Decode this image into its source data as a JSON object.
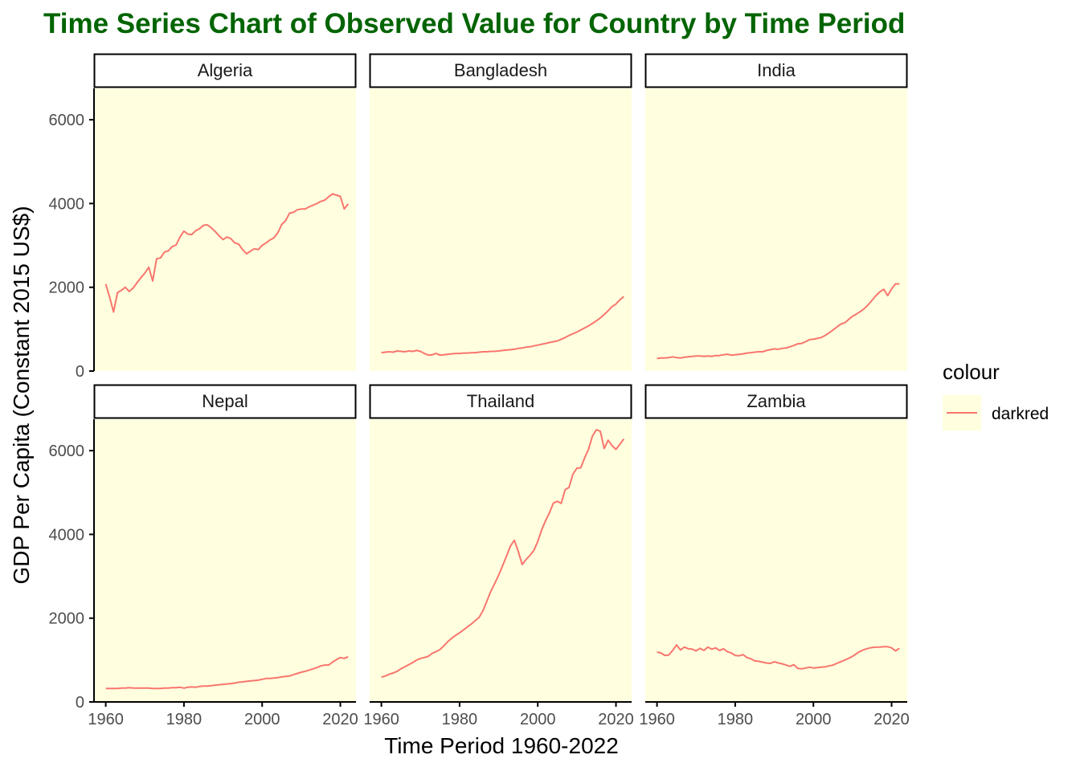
{
  "title": "Time Series Chart of Observed Value for Country by Time Period",
  "colors": {
    "title": "#006400",
    "panel_background": "#FFFFE0",
    "line": "#F8766D",
    "strip_border": "#000000",
    "axis": "#000000"
  },
  "chart_data": {
    "type": "line",
    "facet": "wrap",
    "xlabel": "Time Period 1960-2022",
    "ylabel": "GDP Per Capita (Constant 2015 US$)",
    "xlim": [
      1957,
      2024
    ],
    "ylim": [
      0,
      6750
    ],
    "x_ticks": [
      1960,
      1980,
      2000,
      2020
    ],
    "y_ticks": [
      0,
      2000,
      4000,
      6000
    ],
    "grid": false,
    "legend": {
      "title": "colour",
      "entries": [
        "darkred"
      ],
      "position": "right"
    },
    "panels": [
      {
        "name": "Algeria",
        "x": [
          1960,
          1961,
          1962,
          1963,
          1964,
          1965,
          1966,
          1967,
          1968,
          1969,
          1970,
          1971,
          1972,
          1973,
          1974,
          1975,
          1976,
          1977,
          1978,
          1979,
          1980,
          1981,
          1982,
          1983,
          1984,
          1985,
          1986,
          1987,
          1988,
          1989,
          1990,
          1991,
          1992,
          1993,
          1994,
          1995,
          1996,
          1997,
          1998,
          1999,
          2000,
          2001,
          2002,
          2003,
          2004,
          2005,
          2006,
          2007,
          2008,
          2009,
          2010,
          2011,
          2012,
          2013,
          2014,
          2015,
          2016,
          2017,
          2018,
          2019,
          2020,
          2021,
          2022
        ],
        "y": [
          2080,
          1760,
          1410,
          1870,
          1930,
          2000,
          1900,
          1980,
          2110,
          2230,
          2340,
          2480,
          2150,
          2680,
          2700,
          2840,
          2870,
          2970,
          3010,
          3200,
          3340,
          3270,
          3260,
          3350,
          3400,
          3480,
          3490,
          3420,
          3330,
          3230,
          3140,
          3200,
          3160,
          3060,
          3030,
          2900,
          2800,
          2860,
          2920,
          2900,
          3000,
          3060,
          3130,
          3180,
          3300,
          3500,
          3590,
          3770,
          3790,
          3850,
          3870,
          3870,
          3920,
          3960,
          4000,
          4050,
          4080,
          4160,
          4230,
          4200,
          4170,
          3870,
          3990
        ]
      },
      {
        "name": "Bangladesh",
        "x": [
          1960,
          1961,
          1962,
          1963,
          1964,
          1965,
          1966,
          1967,
          1968,
          1969,
          1970,
          1971,
          1972,
          1973,
          1974,
          1975,
          1976,
          1977,
          1978,
          1979,
          1980,
          1981,
          1982,
          1983,
          1984,
          1985,
          1986,
          1987,
          1988,
          1989,
          1990,
          1991,
          1992,
          1993,
          1994,
          1995,
          1996,
          1997,
          1998,
          1999,
          2000,
          2001,
          2002,
          2003,
          2004,
          2005,
          2006,
          2007,
          2008,
          2009,
          2010,
          2011,
          2012,
          2013,
          2014,
          2015,
          2016,
          2017,
          2018,
          2019,
          2020,
          2021,
          2022
        ],
        "y": [
          440,
          450,
          460,
          450,
          480,
          470,
          460,
          480,
          470,
          490,
          470,
          420,
          380,
          390,
          420,
          380,
          390,
          400,
          410,
          420,
          420,
          430,
          430,
          440,
          440,
          450,
          460,
          460,
          470,
          470,
          480,
          490,
          500,
          510,
          520,
          540,
          550,
          570,
          580,
          600,
          620,
          640,
          660,
          680,
          700,
          720,
          760,
          800,
          850,
          890,
          930,
          980,
          1030,
          1080,
          1140,
          1200,
          1270,
          1350,
          1440,
          1540,
          1600,
          1700,
          1780
        ]
      },
      {
        "name": "India",
        "x": [
          1960,
          1961,
          1962,
          1963,
          1964,
          1965,
          1966,
          1967,
          1968,
          1969,
          1970,
          1971,
          1972,
          1973,
          1974,
          1975,
          1976,
          1977,
          1978,
          1979,
          1980,
          1981,
          1982,
          1983,
          1984,
          1985,
          1986,
          1987,
          1988,
          1989,
          1990,
          1991,
          1992,
          1993,
          1994,
          1995,
          1996,
          1997,
          1998,
          1999,
          2000,
          2001,
          2002,
          2003,
          2004,
          2005,
          2006,
          2007,
          2008,
          2009,
          2010,
          2011,
          2012,
          2013,
          2014,
          2015,
          2016,
          2017,
          2018,
          2019,
          2020,
          2021,
          2022
        ],
        "y": [
          300,
          310,
          310,
          320,
          340,
          320,
          310,
          330,
          340,
          350,
          360,
          360,
          350,
          360,
          350,
          370,
          370,
          390,
          400,
          380,
          390,
          400,
          410,
          430,
          440,
          450,
          460,
          460,
          490,
          510,
          530,
          520,
          540,
          550,
          580,
          610,
          650,
          660,
          700,
          750,
          760,
          780,
          800,
          850,
          910,
          980,
          1050,
          1120,
          1150,
          1230,
          1310,
          1360,
          1420,
          1490,
          1580,
          1690,
          1800,
          1890,
          1950,
          1800,
          1960,
          2080,
          2080
        ]
      },
      {
        "name": "Nepal",
        "x": [
          1960,
          1961,
          1962,
          1963,
          1964,
          1965,
          1966,
          1967,
          1968,
          1969,
          1970,
          1971,
          1972,
          1973,
          1974,
          1975,
          1976,
          1977,
          1978,
          1979,
          1980,
          1981,
          1982,
          1983,
          1984,
          1985,
          1986,
          1987,
          1988,
          1989,
          1990,
          1991,
          1992,
          1993,
          1994,
          1995,
          1996,
          1997,
          1998,
          1999,
          2000,
          2001,
          2002,
          2003,
          2004,
          2005,
          2006,
          2007,
          2008,
          2009,
          2010,
          2011,
          2012,
          2013,
          2014,
          2015,
          2016,
          2017,
          2018,
          2019,
          2020,
          2021,
          2022
        ],
        "y": [
          320,
          320,
          320,
          320,
          330,
          330,
          340,
          330,
          330,
          330,
          330,
          330,
          320,
          320,
          320,
          330,
          330,
          340,
          340,
          350,
          330,
          350,
          360,
          350,
          370,
          380,
          380,
          390,
          400,
          410,
          420,
          430,
          440,
          450,
          470,
          480,
          490,
          500,
          510,
          520,
          540,
          560,
          560,
          570,
          580,
          600,
          610,
          620,
          650,
          680,
          710,
          730,
          760,
          790,
          820,
          860,
          880,
          880,
          950,
          1010,
          1060,
          1040,
          1080
        ]
      },
      {
        "name": "Thailand",
        "x": [
          1960,
          1961,
          1962,
          1963,
          1964,
          1965,
          1966,
          1967,
          1968,
          1969,
          1970,
          1971,
          1972,
          1973,
          1974,
          1975,
          1976,
          1977,
          1978,
          1979,
          1980,
          1981,
          1982,
          1983,
          1984,
          1985,
          1986,
          1987,
          1988,
          1989,
          1990,
          1991,
          1992,
          1993,
          1994,
          1995,
          1996,
          1997,
          1998,
          1999,
          2000,
          2001,
          2002,
          2003,
          2004,
          2005,
          2006,
          2007,
          2008,
          2009,
          2010,
          2011,
          2012,
          2013,
          2014,
          2015,
          2016,
          2017,
          2018,
          2019,
          2020,
          2021,
          2022
        ],
        "y": [
          590,
          620,
          660,
          690,
          730,
          790,
          840,
          890,
          940,
          1000,
          1040,
          1060,
          1090,
          1160,
          1200,
          1250,
          1340,
          1440,
          1520,
          1590,
          1650,
          1720,
          1790,
          1860,
          1940,
          2020,
          2180,
          2410,
          2640,
          2830,
          3030,
          3250,
          3480,
          3720,
          3860,
          3600,
          3280,
          3400,
          3500,
          3620,
          3830,
          4110,
          4330,
          4520,
          4750,
          4790,
          4740,
          5070,
          5120,
          5440,
          5580,
          5590,
          5830,
          6040,
          6350,
          6500,
          6460,
          6050,
          6250,
          6120,
          6030,
          6150,
          6280
        ]
      },
      {
        "name": "Zambia",
        "x": [
          1960,
          1961,
          1962,
          1963,
          1964,
          1965,
          1966,
          1967,
          1968,
          1969,
          1970,
          1971,
          1972,
          1973,
          1974,
          1975,
          1976,
          1977,
          1978,
          1979,
          1980,
          1981,
          1982,
          1983,
          1984,
          1985,
          1986,
          1987,
          1988,
          1989,
          1990,
          1991,
          1992,
          1993,
          1994,
          1995,
          1996,
          1997,
          1998,
          1999,
          2000,
          2001,
          2002,
          2003,
          2004,
          2005,
          2006,
          2007,
          2008,
          2009,
          2010,
          2011,
          2012,
          2013,
          2014,
          2015,
          2016,
          2017,
          2018,
          2019,
          2020,
          2021,
          2022
        ],
        "y": [
          1190,
          1170,
          1110,
          1120,
          1230,
          1360,
          1240,
          1310,
          1270,
          1260,
          1220,
          1280,
          1230,
          1310,
          1260,
          1290,
          1230,
          1270,
          1200,
          1170,
          1110,
          1100,
          1130,
          1060,
          1030,
          980,
          970,
          950,
          930,
          920,
          960,
          930,
          910,
          880,
          850,
          890,
          800,
          790,
          810,
          830,
          810,
          820,
          830,
          840,
          860,
          880,
          920,
          960,
          1000,
          1040,
          1090,
          1150,
          1210,
          1250,
          1280,
          1300,
          1310,
          1310,
          1320,
          1320,
          1290,
          1220,
          1280
        ]
      }
    ]
  }
}
